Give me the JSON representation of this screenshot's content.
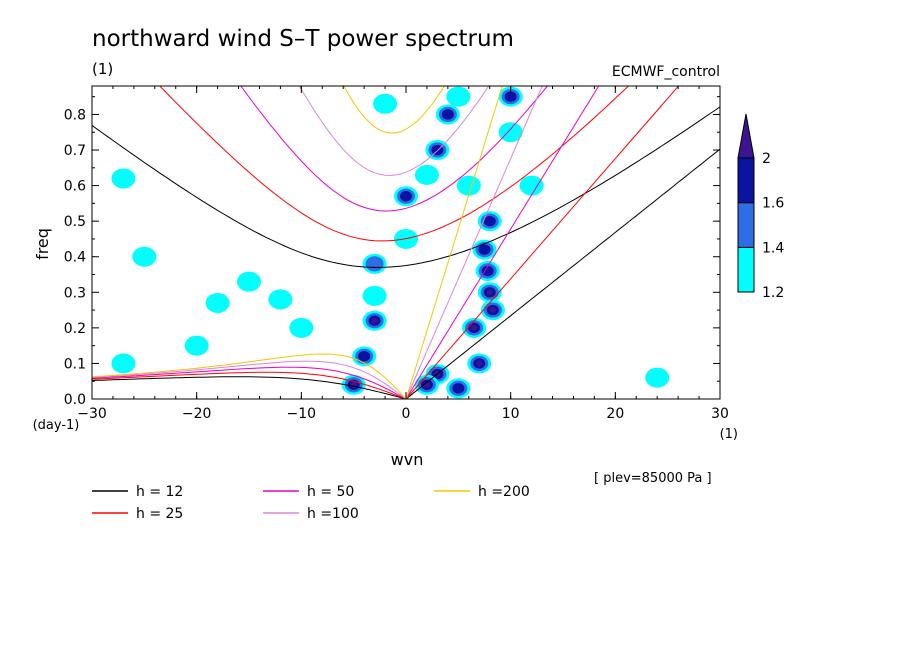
{
  "chart_data": {
    "type": "heatmap",
    "title": "northward wind S–T power spectrum",
    "subtitle_left": "(1)",
    "subtitle_right": "ECMWF_control",
    "xlabel": "wvn",
    "ylabel": "freq",
    "x_unit": "(1)",
    "y_unit": "(day-1)",
    "xlim": [
      -30,
      30
    ],
    "ylim": [
      0,
      0.88
    ],
    "x_ticks": [
      -30,
      -20,
      -10,
      0,
      10,
      20,
      30
    ],
    "y_ticks": [
      0.0,
      0.1,
      0.2,
      0.3,
      0.4,
      0.5,
      0.6,
      0.7,
      0.8
    ],
    "annotation": "[ plev=85000 Pa ]",
    "colorbar": {
      "levels": [
        1.2,
        1.4,
        1.6,
        2
      ],
      "colors": [
        "#00ffff",
        "#2d6ee6",
        "#0b14a0",
        "#3c1490"
      ]
    },
    "dispersion_curves": [
      {
        "label": "h = 12",
        "h": 12,
        "color": "#000000"
      },
      {
        "label": "h = 25",
        "h": 25,
        "color": "#ff0000"
      },
      {
        "label": "h = 50",
        "h": 50,
        "color": "#e600c8"
      },
      {
        "label": "h =100",
        "h": 100,
        "color": "#dc82dc"
      },
      {
        "label": "h =200",
        "h": 200,
        "color": "#f0c800"
      }
    ],
    "spectral_peaks": [
      {
        "x": 8,
        "y": 0.3,
        "level": 2
      },
      {
        "x": 8.3,
        "y": 0.25,
        "level": 2
      },
      {
        "x": 7.8,
        "y": 0.36,
        "level": 1.6
      },
      {
        "x": 7.5,
        "y": 0.42,
        "level": 1.6
      },
      {
        "x": 6.5,
        "y": 0.2,
        "level": 2
      },
      {
        "x": 7,
        "y": 0.1,
        "level": 2
      },
      {
        "x": 3,
        "y": 0.07,
        "level": 2
      },
      {
        "x": 2,
        "y": 0.04,
        "level": 2
      },
      {
        "x": 5,
        "y": 0.03,
        "level": 1.6
      },
      {
        "x": 8,
        "y": 0.5,
        "level": 1.6
      },
      {
        "x": 3,
        "y": 0.7,
        "level": 1.6
      },
      {
        "x": 4,
        "y": 0.8,
        "level": 1.6
      },
      {
        "x": 0,
        "y": 0.57,
        "level": 1.6
      },
      {
        "x": -3,
        "y": 0.22,
        "level": 2
      },
      {
        "x": -4,
        "y": 0.12,
        "level": 1.6
      },
      {
        "x": -5,
        "y": 0.04,
        "level": 2
      },
      {
        "x": -3,
        "y": 0.38,
        "level": 1.4
      },
      {
        "x": -3,
        "y": 0.29,
        "level": 1.2
      },
      {
        "x": 0,
        "y": 0.45,
        "level": 1.2
      },
      {
        "x": 2,
        "y": 0.63,
        "level": 1.2
      },
      {
        "x": 6,
        "y": 0.6,
        "level": 1.2
      },
      {
        "x": 10,
        "y": 0.75,
        "level": 1.2
      },
      {
        "x": -10,
        "y": 0.2,
        "level": 1.2
      },
      {
        "x": -15,
        "y": 0.33,
        "level": 1.2
      },
      {
        "x": -18,
        "y": 0.27,
        "level": 1.2
      },
      {
        "x": -25,
        "y": 0.4,
        "level": 1.2
      },
      {
        "x": -27,
        "y": 0.62,
        "level": 1.2
      },
      {
        "x": -20,
        "y": 0.15,
        "level": 1.2
      },
      {
        "x": -12,
        "y": 0.28,
        "level": 1.2
      },
      {
        "x": 5,
        "y": 0.85,
        "level": 1.2
      },
      {
        "x": 10,
        "y": 0.85,
        "level": 1.6
      },
      {
        "x": 12,
        "y": 0.6,
        "level": 1.2
      },
      {
        "x": -2,
        "y": 0.83,
        "level": 1.2
      },
      {
        "x": -27,
        "y": 0.1,
        "level": 1.2
      },
      {
        "x": 24,
        "y": 0.06,
        "level": 1.2
      }
    ]
  }
}
